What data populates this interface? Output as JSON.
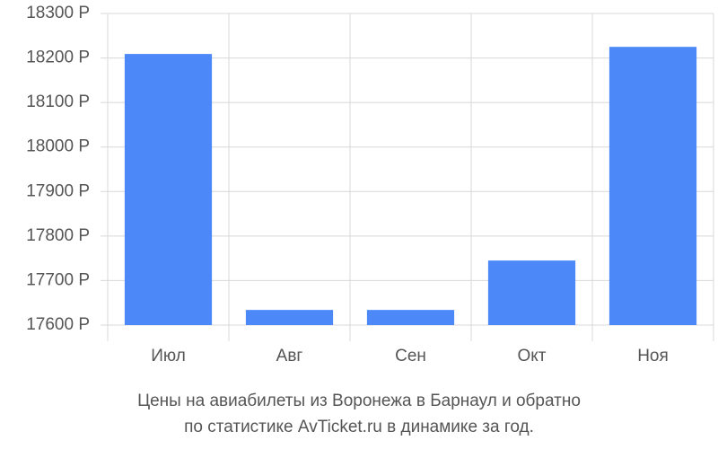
{
  "chart_data": {
    "type": "bar",
    "title": "Цены на авиабилеты из Воронежа в Барнаул и обратно",
    "subtitle": "по статистике AvTicket.ru в динамике за год.",
    "categories": [
      "Июл",
      "Авг",
      "Сен",
      "Окт",
      "Ноя"
    ],
    "values": [
      18209,
      17634,
      17634,
      17745,
      18225
    ],
    "color": "#4d88f9",
    "ylim": [
      17600,
      18300
    ],
    "yticks": [
      {
        "value": 17600,
        "label": "17600 Р"
      },
      {
        "value": 17700,
        "label": "17700 Р"
      },
      {
        "value": 17800,
        "label": "17800 Р"
      },
      {
        "value": 17900,
        "label": "17900 Р"
      },
      {
        "value": 18000,
        "label": "18000 Р"
      },
      {
        "value": 18100,
        "label": "18100 Р"
      },
      {
        "value": 18200,
        "label": "18200 Р"
      },
      {
        "value": 18300,
        "label": "18300 Р"
      }
    ],
    "grid": true
  }
}
